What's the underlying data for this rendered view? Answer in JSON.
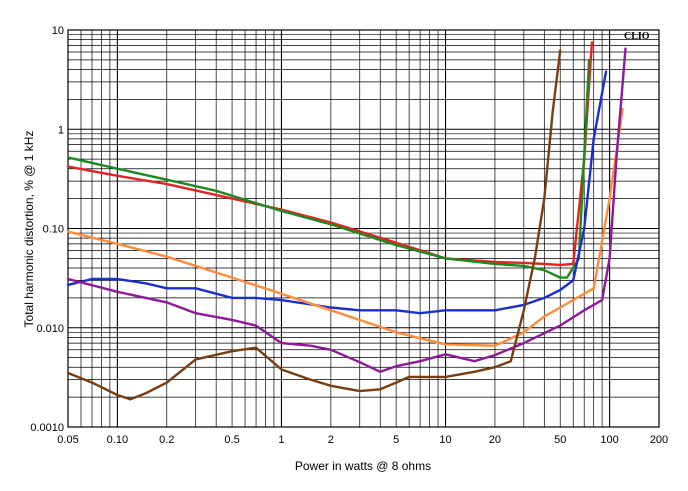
{
  "chart_data": {
    "type": "line",
    "title": "",
    "brand": "CLIO",
    "xlabel": "Power in watts @ 8 ohms",
    "ylabel": "Total harmonic distortion, % @ 1 kHz",
    "xscale": "log",
    "yscale": "log",
    "xlim": [
      0.05,
      200
    ],
    "ylim": [
      0.001,
      10
    ],
    "x_ticks": [
      {
        "value": 0.05,
        "label": "0.05"
      },
      {
        "value": 0.1,
        "label": "0.10"
      },
      {
        "value": 0.2,
        "label": "0.2"
      },
      {
        "value": 0.5,
        "label": "0.5"
      },
      {
        "value": 1,
        "label": "1"
      },
      {
        "value": 2,
        "label": "2"
      },
      {
        "value": 5,
        "label": "5"
      },
      {
        "value": 10,
        "label": "10"
      },
      {
        "value": 20,
        "label": "20"
      },
      {
        "value": 50,
        "label": "50"
      },
      {
        "value": 100,
        "label": "100"
      },
      {
        "value": 200,
        "label": "200"
      }
    ],
    "y_ticks": [
      {
        "value": 0.001,
        "label": "0.0010"
      },
      {
        "value": 0.01,
        "label": "0.010"
      },
      {
        "value": 0.1,
        "label": "0.10"
      },
      {
        "value": 1,
        "label": "1"
      },
      {
        "value": 10,
        "label": "10"
      }
    ],
    "grid": true,
    "series": [
      {
        "name": "red",
        "color": "#e52222",
        "x": [
          0.05,
          0.1,
          0.2,
          0.5,
          1,
          2,
          5,
          10,
          20,
          30,
          40,
          50,
          60,
          70,
          78
        ],
        "y": [
          0.42,
          0.34,
          0.28,
          0.2,
          0.155,
          0.115,
          0.072,
          0.05,
          0.046,
          0.045,
          0.044,
          0.043,
          0.044,
          0.5,
          7.5
        ]
      },
      {
        "name": "green",
        "color": "#1e8a1e",
        "x": [
          0.05,
          0.1,
          0.2,
          0.4,
          0.7,
          1,
          2,
          5,
          10,
          20,
          30,
          40,
          50,
          55,
          65,
          75
        ],
        "y": [
          0.52,
          0.4,
          0.31,
          0.24,
          0.18,
          0.15,
          0.11,
          0.068,
          0.05,
          0.044,
          0.042,
          0.038,
          0.032,
          0.032,
          0.05,
          5.0
        ]
      },
      {
        "name": "blue",
        "color": "#1a2fd0",
        "x": [
          0.05,
          0.07,
          0.1,
          0.15,
          0.2,
          0.3,
          0.5,
          0.7,
          1,
          2,
          3,
          4,
          5,
          7,
          10,
          20,
          30,
          40,
          50,
          60,
          70,
          80,
          95
        ],
        "y": [
          0.027,
          0.031,
          0.031,
          0.028,
          0.025,
          0.025,
          0.02,
          0.02,
          0.019,
          0.016,
          0.015,
          0.015,
          0.015,
          0.014,
          0.015,
          0.015,
          0.017,
          0.02,
          0.024,
          0.03,
          0.1,
          0.8,
          3.8
        ]
      },
      {
        "name": "orange",
        "color": "#ff8c3c",
        "x": [
          0.05,
          0.1,
          0.2,
          0.5,
          1,
          2,
          5,
          10,
          20,
          30,
          40,
          50,
          60,
          80,
          100,
          120
        ],
        "y": [
          0.093,
          0.07,
          0.052,
          0.032,
          0.022,
          0.015,
          0.009,
          0.0068,
          0.0066,
          0.009,
          0.013,
          0.016,
          0.019,
          0.025,
          0.2,
          1.6
        ]
      },
      {
        "name": "purple",
        "color": "#8e1a9a",
        "x": [
          0.05,
          0.1,
          0.2,
          0.3,
          0.5,
          0.7,
          1,
          1.5,
          2,
          3,
          4,
          5,
          7,
          10,
          15,
          20,
          30,
          50,
          70,
          90,
          100,
          110,
          125
        ],
        "y": [
          0.031,
          0.023,
          0.018,
          0.014,
          0.012,
          0.0105,
          0.007,
          0.0066,
          0.006,
          0.0045,
          0.0036,
          0.0041,
          0.0046,
          0.0054,
          0.0046,
          0.0053,
          0.007,
          0.0105,
          0.015,
          0.019,
          0.05,
          0.5,
          6.5
        ]
      },
      {
        "name": "brown",
        "color": "#7a3d10",
        "x": [
          0.05,
          0.07,
          0.1,
          0.12,
          0.15,
          0.2,
          0.3,
          0.5,
          0.7,
          1,
          1.5,
          2,
          3,
          4,
          5,
          6,
          7,
          10,
          15,
          20,
          25,
          30,
          35,
          40,
          45,
          50
        ],
        "y": [
          0.0035,
          0.0028,
          0.0021,
          0.0019,
          0.0022,
          0.0028,
          0.0048,
          0.0058,
          0.0063,
          0.0038,
          0.003,
          0.0026,
          0.0023,
          0.0024,
          0.0028,
          0.0032,
          0.0032,
          0.0032,
          0.0036,
          0.004,
          0.0046,
          0.015,
          0.05,
          0.2,
          1.5,
          6.2
        ]
      }
    ]
  }
}
